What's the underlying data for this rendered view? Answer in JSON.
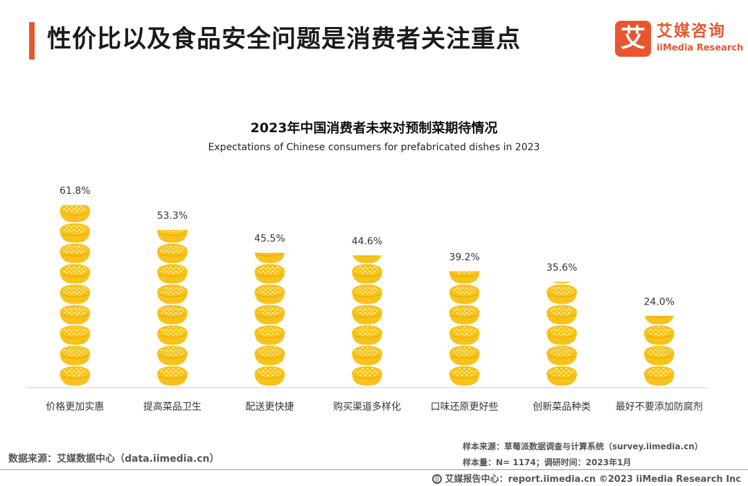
{
  "header": {
    "title": "性价比以及食品安全问题是消费者关注重点",
    "logo_mark": "艾",
    "logo_cn": "艾媒咨询",
    "logo_en": "iiMedia Research"
  },
  "colors": {
    "accent": "#e8562f",
    "bowl_fill": "#f7c21c",
    "bowl_dots": "#fff3b0",
    "axis": "#cccccc"
  },
  "chart_data": {
    "type": "bar",
    "title": "2023年中国消费者未来对预制菜期待情况",
    "subtitle": "Expectations of Chinese consumers for prefabricated dishes in 2023",
    "categories": [
      "价格更加实惠",
      "提高菜品卫生",
      "配送更快捷",
      "购买渠道多样化",
      "口味还原更好些",
      "创新菜品种类",
      "最好不要添加防腐剂"
    ],
    "values": [
      61.8,
      53.3,
      45.5,
      44.6,
      39.2,
      35.6,
      24.0
    ],
    "value_labels": [
      "61.8%",
      "53.3%",
      "45.5%",
      "44.6%",
      "39.2%",
      "35.6%",
      "24.0%"
    ],
    "unit": "%",
    "ylim": [
      0,
      65
    ],
    "mark": "stacked-bowl-pictograph",
    "grid": false,
    "legend": "none"
  },
  "footer": {
    "source_left": "数据来源：艾媒数据中心（data.iimedia.cn）",
    "sample_source": "样本来源：草莓派数据调查与计算系统（survey.iimedia.cn）",
    "sample_size": "样本量：N= 1174；调研时间：2023年1月",
    "copyright": "艾媒报告中心：report.iimedia.cn  ©2023  iiMedia Research  Inc"
  }
}
